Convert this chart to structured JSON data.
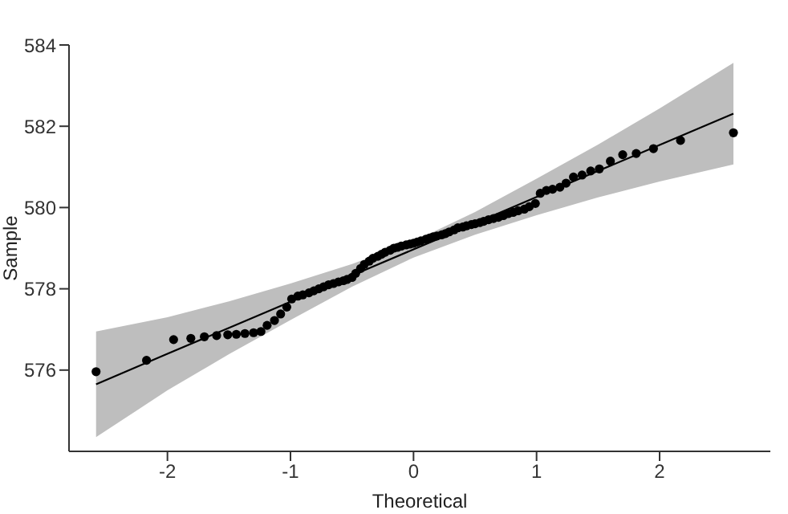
{
  "chart_data": {
    "type": "scatter",
    "xlabel": "Theoretical",
    "ylabel": "Sample",
    "xlim": [
      -2.8,
      2.9
    ],
    "xticks": [
      -2,
      -1,
      0,
      1,
      2
    ],
    "ylim": [
      574,
      584
    ],
    "yticks": [
      576,
      578,
      580,
      582,
      584
    ],
    "grid": false,
    "marker": "circle",
    "series": [
      {
        "type": "line",
        "color": "#000000",
        "line_style": "solid",
        "marker": "none",
        "x": [
          -2.58,
          -2,
          -1.5,
          -1,
          -0.5,
          0,
          0.5,
          1,
          1.5,
          2,
          2.6
        ],
        "values": [
          575.65,
          576.4,
          577.04,
          577.68,
          578.33,
          578.97,
          579.61,
          580.26,
          580.9,
          581.54,
          582.31
        ],
        "lower": [
          574.35,
          575.5,
          576.39,
          577.23,
          578.05,
          578.77,
          579.33,
          579.81,
          580.25,
          580.64,
          581.06
        ],
        "upper": [
          576.95,
          577.3,
          577.69,
          578.13,
          578.61,
          579.17,
          579.89,
          580.71,
          581.55,
          582.44,
          583.56
        ]
      },
      {
        "color": "#000000",
        "x": [
          -2.58,
          -2.17,
          -1.95,
          -1.81,
          -1.7,
          -1.6,
          -1.51,
          -1.44,
          -1.37,
          -1.3,
          -1.24,
          -1.19,
          -1.13,
          -1.08,
          -1.03,
          -0.99,
          -0.94,
          -0.9,
          -0.85,
          -0.81,
          -0.77,
          -0.73,
          -0.69,
          -0.65,
          -0.61,
          -0.57,
          -0.54,
          -0.5,
          -0.47,
          -0.43,
          -0.4,
          -0.36,
          -0.33,
          -0.29,
          -0.26,
          -0.23,
          -0.19,
          -0.16,
          -0.13,
          -0.1,
          -0.06,
          -0.03,
          0,
          0.03,
          0.06,
          0.1,
          0.13,
          0.16,
          0.19,
          0.23,
          0.26,
          0.29,
          0.33,
          0.36,
          0.4,
          0.43,
          0.47,
          0.5,
          0.54,
          0.57,
          0.61,
          0.65,
          0.69,
          0.73,
          0.77,
          0.81,
          0.85,
          0.9,
          0.94,
          0.99,
          1.03,
          1.08,
          1.13,
          1.19,
          1.24,
          1.3,
          1.37,
          1.44,
          1.51,
          1.6,
          1.7,
          1.81,
          1.95,
          2.17,
          2.6
        ],
        "values": [
          575.96,
          576.24,
          576.75,
          576.78,
          576.82,
          576.85,
          576.87,
          576.88,
          576.9,
          576.92,
          576.95,
          577.1,
          577.22,
          577.38,
          577.55,
          577.75,
          577.82,
          577.85,
          577.9,
          577.95,
          578,
          578.05,
          578.1,
          578.13,
          578.17,
          578.2,
          578.23,
          578.28,
          578.38,
          578.5,
          578.6,
          578.68,
          578.75,
          578.8,
          578.85,
          578.9,
          578.95,
          579,
          579.02,
          579.05,
          579.08,
          579.1,
          579.12,
          579.15,
          579.18,
          579.22,
          579.25,
          579.28,
          579.3,
          579.33,
          579.36,
          579.4,
          579.45,
          579.5,
          579.52,
          579.55,
          579.58,
          579.6,
          579.63,
          579.66,
          579.7,
          579.73,
          579.76,
          579.8,
          579.85,
          579.88,
          579.92,
          579.96,
          580.02,
          580.1,
          580.35,
          580.42,
          580.45,
          580.5,
          580.6,
          580.75,
          580.8,
          580.9,
          580.95,
          581.14,
          581.3,
          581.33,
          581.45,
          581.65,
          581.84
        ]
      }
    ]
  }
}
